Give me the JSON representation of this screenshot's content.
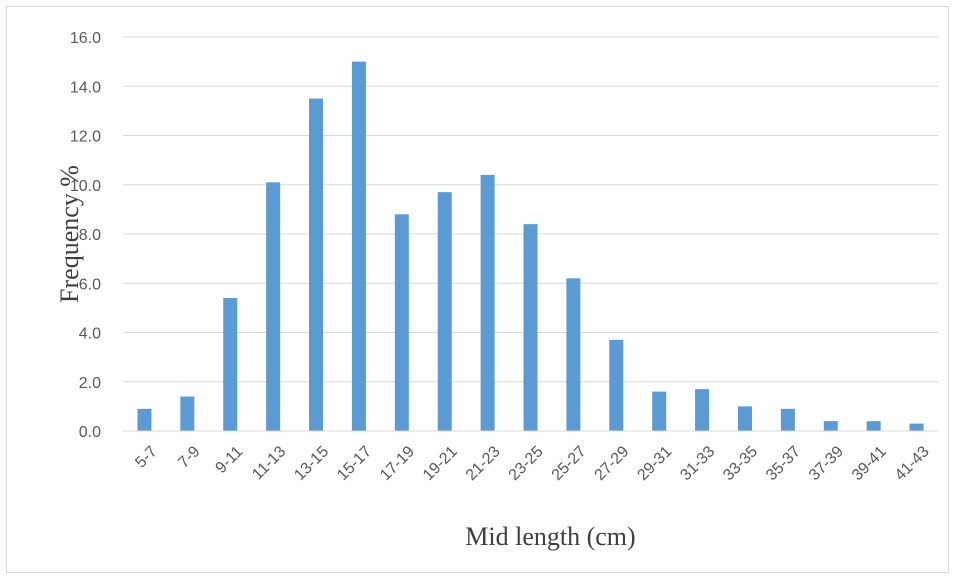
{
  "chart_data": {
    "type": "bar",
    "title": "",
    "xlabel": "Mid length (cm)",
    "ylabel": "Frequency %",
    "ylim": [
      0,
      16
    ],
    "yticks": [
      "0.0",
      "2.0",
      "4.0",
      "6.0",
      "8.0",
      "10.0",
      "12.0",
      "14.0",
      "16.0"
    ],
    "grid": true,
    "legend": "none",
    "bar_color": "#5b9bd5",
    "categories": [
      "5-7",
      "7-9",
      "9-11",
      "11-13",
      "13-15",
      "15-17",
      "17-19",
      "19-21",
      "21-23",
      "23-25",
      "25-27",
      "27-29",
      "29-31",
      "31-33",
      "33-35",
      "35-37",
      "37-39",
      "39-41",
      "41-43"
    ],
    "values": [
      0.9,
      1.4,
      5.4,
      10.1,
      13.5,
      15.0,
      8.8,
      9.7,
      10.4,
      8.4,
      6.2,
      3.7,
      1.6,
      1.7,
      1.0,
      0.9,
      0.4,
      0.4,
      0.3
    ]
  }
}
